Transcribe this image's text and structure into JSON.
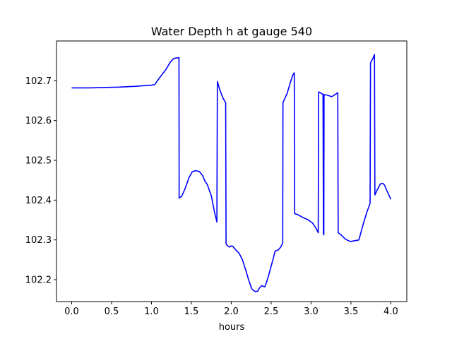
{
  "chart_data": {
    "type": "line",
    "title": "Water Depth h at gauge 540",
    "xlabel": "hours",
    "ylabel": "",
    "xlim": [
      -0.19,
      4.2
    ],
    "ylim": [
      102.145,
      102.8
    ],
    "x_ticks": [
      0.0,
      0.5,
      1.0,
      1.5,
      2.0,
      2.5,
      3.0,
      3.5,
      4.0
    ],
    "x_tick_labels": [
      "0.0",
      "0.5",
      "1.0",
      "1.5",
      "2.0",
      "2.5",
      "3.0",
      "3.5",
      "4.0"
    ],
    "y_ticks": [
      102.2,
      102.3,
      102.4,
      102.5,
      102.6,
      102.7
    ],
    "y_tick_labels": [
      "102.2",
      "102.3",
      "102.4",
      "102.5",
      "102.6",
      "102.7"
    ],
    "grid": false,
    "line_color": "#0000ff",
    "series": [
      {
        "x": [
          0.0,
          0.2,
          0.4,
          0.6,
          0.8,
          1.0,
          1.04,
          1.1,
          1.18,
          1.24,
          1.28,
          1.31,
          1.345,
          1.347,
          1.38,
          1.42,
          1.47,
          1.51,
          1.55,
          1.6,
          1.64,
          1.67,
          1.7,
          1.75,
          1.79,
          1.82,
          1.826,
          1.86,
          1.9,
          1.93,
          1.935,
          1.96,
          1.98,
          2.0,
          2.02,
          2.06,
          2.1,
          2.14,
          2.18,
          2.22,
          2.26,
          2.3,
          2.33,
          2.35,
          2.38,
          2.42,
          2.44,
          2.47,
          2.5,
          2.53,
          2.55,
          2.59,
          2.62,
          2.645,
          2.648,
          2.7,
          2.74,
          2.77,
          2.79,
          2.795,
          2.84,
          2.9,
          2.96,
          3.02,
          3.06,
          3.09,
          3.095,
          3.13,
          3.15,
          3.155,
          3.16,
          3.163,
          3.2,
          3.26,
          3.3,
          3.335,
          3.34,
          3.38,
          3.43,
          3.49,
          3.55,
          3.6,
          3.62,
          3.66,
          3.7,
          3.74,
          3.745,
          3.78,
          3.795,
          3.8,
          3.84,
          3.87,
          3.9,
          3.92,
          3.95,
          3.98,
          4.0
        ],
        "y": [
          102.682,
          102.682,
          102.683,
          102.684,
          102.686,
          102.689,
          102.69,
          102.707,
          102.728,
          102.748,
          102.756,
          102.757,
          102.758,
          102.405,
          102.41,
          102.428,
          102.456,
          102.471,
          102.474,
          102.472,
          102.462,
          102.448,
          102.439,
          102.411,
          102.37,
          102.345,
          102.698,
          102.675,
          102.655,
          102.645,
          102.29,
          102.284,
          102.282,
          102.285,
          102.284,
          102.274,
          102.266,
          102.25,
          102.225,
          102.198,
          102.176,
          102.17,
          102.171,
          102.178,
          102.185,
          102.182,
          102.192,
          102.212,
          102.234,
          102.256,
          102.272,
          102.275,
          102.282,
          102.292,
          102.645,
          102.668,
          102.695,
          102.714,
          102.72,
          102.366,
          102.363,
          102.356,
          102.351,
          102.342,
          102.33,
          102.318,
          102.672,
          102.668,
          102.666,
          102.315,
          102.313,
          102.665,
          102.664,
          102.66,
          102.665,
          102.67,
          102.318,
          102.312,
          102.302,
          102.296,
          102.298,
          102.3,
          102.315,
          102.344,
          102.37,
          102.392,
          102.745,
          102.758,
          102.766,
          102.413,
          102.43,
          102.441,
          102.442,
          102.438,
          102.424,
          102.411,
          102.402
        ]
      }
    ]
  }
}
